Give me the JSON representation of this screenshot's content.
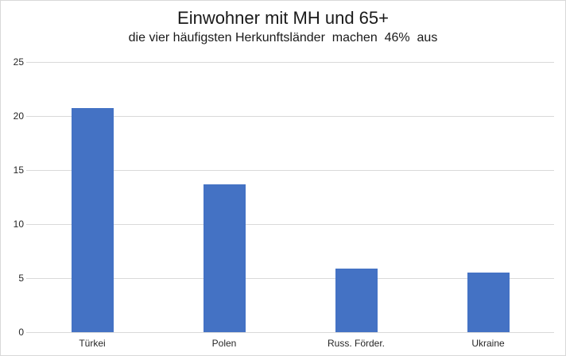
{
  "chart": {
    "background_color": "#FFFFFF",
    "border_color": "#D9D9D9"
  },
  "chart_data": {
    "type": "bar",
    "title": "Einwohner mit MH und 65+",
    "subtitle": "die vier häufigsten Herkunftsländer  machen  46%  aus",
    "categories": [
      "Türkei",
      "Polen",
      "Russ. Förder.",
      "Ukraine"
    ],
    "values": [
      20.7,
      13.7,
      5.9,
      5.5
    ],
    "xlabel": "",
    "ylabel": "",
    "ylim": [
      0,
      25
    ],
    "yticks": [
      0,
      5,
      10,
      15,
      20,
      25
    ],
    "grid": true,
    "legend_position": "none",
    "bar_color": "#4472C4",
    "gridline_color": "#D9D9D9",
    "text_color": "#262626",
    "title_color": "#1A1A1A"
  }
}
